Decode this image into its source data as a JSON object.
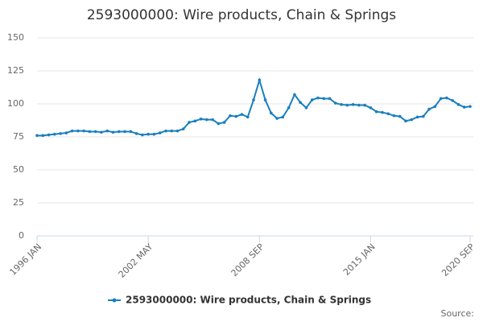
{
  "chart_data": {
    "type": "line",
    "title": "2593000000: Wire products, Chain & Springs",
    "source_label": "Source:",
    "categories": [
      "1996 JAN",
      null,
      null,
      null,
      null,
      null,
      null,
      null,
      null,
      null,
      null,
      null,
      null,
      null,
      null,
      null,
      null,
      null,
      null,
      "2002 MAY",
      null,
      null,
      null,
      null,
      null,
      null,
      null,
      null,
      null,
      null,
      null,
      null,
      null,
      null,
      null,
      null,
      null,
      null,
      "2008 SEP",
      null,
      null,
      null,
      null,
      null,
      null,
      null,
      null,
      null,
      null,
      null,
      null,
      null,
      null,
      null,
      null,
      null,
      null,
      "2015 JAN",
      null,
      null,
      null,
      null,
      null,
      null,
      null,
      null,
      null,
      null,
      null,
      null,
      null,
      null,
      null,
      null,
      "2020 SEP"
    ],
    "series": [
      {
        "name": "2593000000: Wire products, Chain & Springs",
        "color": "#1a7fbf",
        "values": [
          76,
          76,
          76.5,
          77,
          77.5,
          78,
          79.5,
          79.5,
          79.5,
          79,
          79,
          78.5,
          79.5,
          78.5,
          79,
          79,
          79,
          77.5,
          76.5,
          77,
          77,
          78,
          79.5,
          79.5,
          79.5,
          81,
          86,
          87,
          88.5,
          88,
          88,
          85,
          86,
          91,
          90.5,
          92,
          90,
          103,
          118,
          103,
          93,
          89,
          90,
          97,
          107,
          101,
          97,
          103,
          104.5,
          104,
          104,
          100.5,
          99.5,
          99,
          99.5,
          99,
          99,
          97,
          94,
          93.5,
          92.5,
          91,
          90.5,
          87,
          88,
          90,
          90.5,
          96,
          98,
          104,
          104.5,
          102.5,
          99.5,
          97.5,
          98
        ]
      }
    ],
    "ylim": [
      0,
      150
    ],
    "yticks": [
      0,
      25,
      50,
      75,
      100,
      125,
      150
    ],
    "grid": true
  }
}
